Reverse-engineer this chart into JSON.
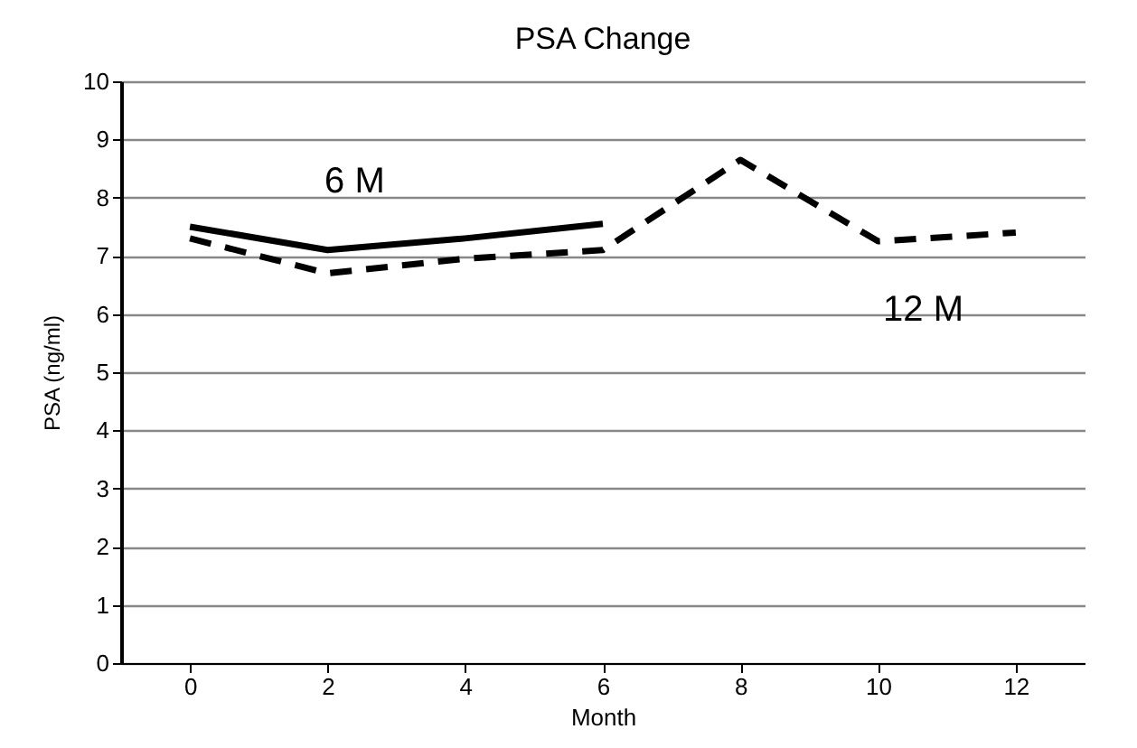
{
  "chart_data": {
    "type": "line",
    "title": "PSA Change",
    "xlabel": "Month",
    "ylabel": "PSA (ng/ml)",
    "series": [
      {
        "name": "6 M",
        "color": "#000000",
        "line_style": "solid",
        "x": [
          0,
          2,
          4,
          6
        ],
        "values": [
          7.5,
          7.1,
          7.3,
          7.55
        ]
      },
      {
        "name": "12 M",
        "color": "#000000",
        "line_style": "dashed",
        "x": [
          0,
          2,
          4,
          6,
          8,
          10,
          12
        ],
        "values": [
          7.3,
          6.7,
          6.95,
          7.1,
          8.65,
          7.25,
          7.4
        ]
      }
    ],
    "xlim": [
      -1,
      13
    ],
    "xticks": [
      0,
      2,
      4,
      6,
      8,
      10,
      12
    ],
    "ylim": [
      0,
      10
    ],
    "yticks": [
      0,
      1,
      2,
      3,
      4,
      5,
      6,
      7,
      8,
      9,
      10
    ],
    "grid": "y",
    "legend": false,
    "marker": "none"
  }
}
